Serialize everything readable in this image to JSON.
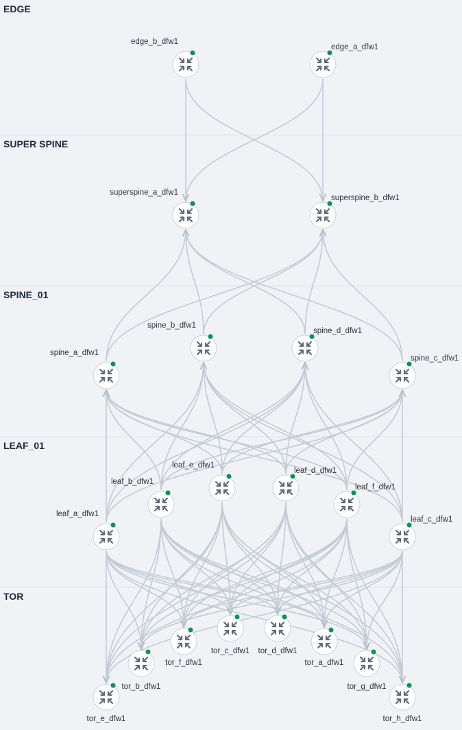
{
  "layers": [
    {
      "title": "EDGE",
      "nodes": [
        "edge_b_dfw1",
        "edge_a_dfw1"
      ]
    },
    {
      "title": "SUPER SPINE",
      "nodes": [
        "superspine_a_dfw1",
        "superspine_b_dfw1"
      ]
    },
    {
      "title": "SPINE_01",
      "nodes": [
        "spine_a_dfw1",
        "spine_b_dfw1",
        "spine_d_dfw1",
        "spine_c_dfw1"
      ]
    },
    {
      "title": "LEAF_01",
      "nodes": [
        "leaf_a_dfw1",
        "leaf_b_dfw1",
        "leaf_e_dfw1",
        "leaf_d_dfw1",
        "leaf_f_dfw1",
        "leaf_c_dfw1"
      ]
    },
    {
      "title": "TOR",
      "nodes": [
        "tor_e_dfw1",
        "tor_b_dfw1",
        "tor_f_dfw1",
        "tor_c_dfw1",
        "tor_d_dfw1",
        "tor_a_dfw1",
        "tor_g_dfw1",
        "tor_h_dfw1"
      ]
    }
  ]
}
